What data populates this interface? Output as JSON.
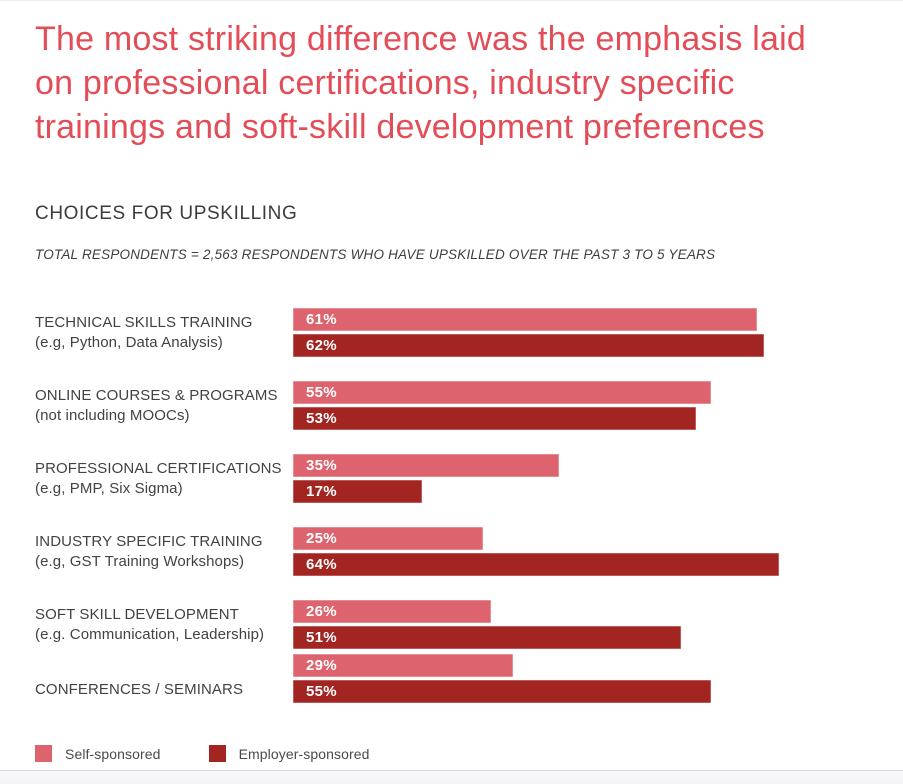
{
  "title_lines": [
    "The most striking difference was the emphasis laid",
    "on professional certifications, industry specific",
    "trainings and soft-skill development preferences"
  ],
  "chart": {
    "heading": "CHOICES FOR UPSKILLING",
    "subtitle": "TOTAL RESPONDENTS = 2,563 RESPONDENTS WHO HAVE UPSKILLED OVER THE PAST 3 TO 5 YEARS"
  },
  "chart_data": {
    "type": "bar",
    "orientation": "horizontal",
    "categories": [
      {
        "label": "TECHNICAL SKILLS TRAINING",
        "sublabel": "(e.g, Python, Data Analysis)"
      },
      {
        "label": "ONLINE COURSES & PROGRAMS",
        "sublabel": "(not including MOOCs)"
      },
      {
        "label": "PROFESSIONAL CERTIFICATIONS",
        "sublabel": "(e.g, PMP, Six Sigma)"
      },
      {
        "label": "INDUSTRY SPECIFIC TRAINING",
        "sublabel": "(e.g, GST Training Workshops)"
      },
      {
        "label": "SOFT SKILL DEVELOPMENT",
        "sublabel": "(e.g. Communication, Leadership)"
      },
      {
        "label": "CONFERENCES / SEMINARS",
        "sublabel": ""
      }
    ],
    "series": [
      {
        "name": "Self-sponsored",
        "color": "#dd646e",
        "values": [
          61,
          55,
          35,
          25,
          26,
          29
        ]
      },
      {
        "name": "Employer-sponsored",
        "color": "#a32522",
        "values": [
          62,
          53,
          17,
          64,
          51,
          55
        ]
      }
    ],
    "value_suffix": "%",
    "value_labels_shown": true,
    "xlim": [
      0,
      66
    ],
    "grid": false,
    "legend_position": "bottom-left",
    "title": "CHOICES FOR UPSKILLING",
    "xlabel": "",
    "ylabel": ""
  },
  "colors": {
    "title_red": "#e24d57",
    "label_gray": "#424242",
    "heading_gray": "#3c3c3c"
  },
  "legend": {
    "items": [
      {
        "label": "Self-sponsored",
        "color": "#dd646e"
      },
      {
        "label": "Employer-sponsored",
        "color": "#a32522"
      }
    ]
  }
}
